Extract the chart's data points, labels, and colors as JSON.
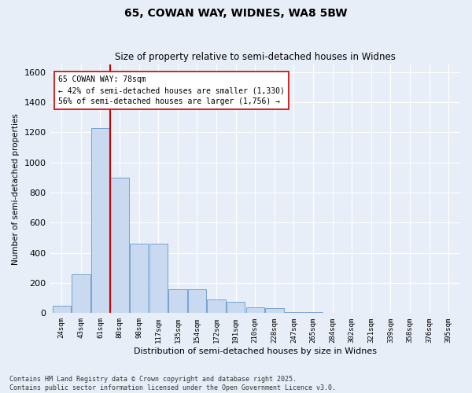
{
  "title1": "65, COWAN WAY, WIDNES, WA8 5BW",
  "title2": "Size of property relative to semi-detached houses in Widnes",
  "xlabel": "Distribution of semi-detached houses by size in Widnes",
  "ylabel": "Number of semi-detached properties",
  "bins": [
    "24sqm",
    "43sqm",
    "61sqm",
    "80sqm",
    "98sqm",
    "117sqm",
    "135sqm",
    "154sqm",
    "172sqm",
    "191sqm",
    "210sqm",
    "228sqm",
    "247sqm",
    "265sqm",
    "284sqm",
    "302sqm",
    "321sqm",
    "339sqm",
    "358sqm",
    "376sqm",
    "395sqm"
  ],
  "values": [
    50,
    260,
    1230,
    900,
    460,
    460,
    160,
    160,
    90,
    75,
    40,
    35,
    10,
    8,
    2,
    1,
    0,
    0,
    0,
    0,
    0
  ],
  "bar_color": "#c8d9f0",
  "bar_edge_color": "#6699cc",
  "vline_x_idx": 3,
  "vline_color": "#cc0000",
  "annotation_text": "65 COWAN WAY: 78sqm\n← 42% of semi-detached houses are smaller (1,330)\n56% of semi-detached houses are larger (1,756) →",
  "annotation_box_color": "#ffffff",
  "annotation_box_edge": "#cc0000",
  "ylim": [
    0,
    1650
  ],
  "yticks": [
    0,
    200,
    400,
    600,
    800,
    1000,
    1200,
    1400,
    1600
  ],
  "footer": "Contains HM Land Registry data © Crown copyright and database right 2025.\nContains public sector information licensed under the Open Government Licence v3.0.",
  "bg_color": "#e8eef8",
  "plot_bg_color": "#e8eef8"
}
